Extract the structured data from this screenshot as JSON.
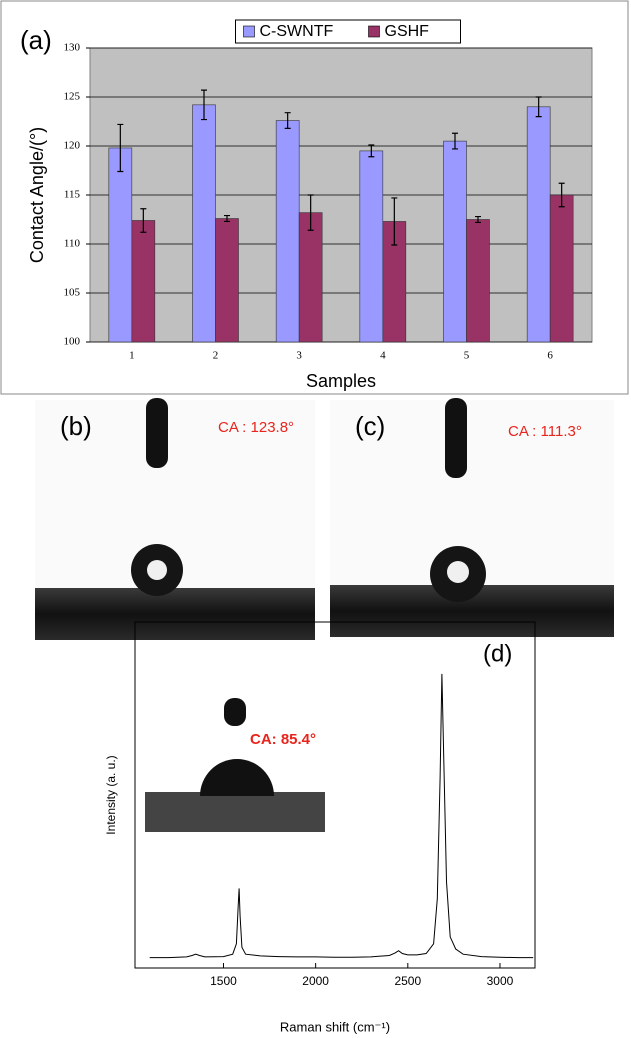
{
  "chart_data": [
    {
      "type": "bar",
      "label": "(a)",
      "categories": [
        "1",
        "2",
        "3",
        "4",
        "5",
        "6"
      ],
      "series": [
        {
          "name": "C-SWNTF",
          "color": "#9999ff",
          "values": [
            119.8,
            124.2,
            122.6,
            119.5,
            120.5,
            124.0
          ],
          "errors": [
            2.4,
            1.5,
            0.8,
            0.6,
            0.8,
            1.0
          ]
        },
        {
          "name": "GSHF",
          "color": "#993366",
          "values": [
            112.4,
            112.6,
            113.2,
            112.3,
            112.5,
            115.0
          ],
          "errors": [
            1.2,
            0.3,
            1.8,
            2.4,
            0.3,
            1.2
          ]
        }
      ],
      "xlabel": "Samples",
      "ylabel": "Contact Angle/(°)",
      "ylim": [
        100,
        130
      ],
      "yticks": [
        100,
        105,
        110,
        115,
        120,
        125,
        130
      ],
      "grid": true,
      "legend": "top"
    },
    {
      "type": "line",
      "label": "(d)",
      "x": [
        1100,
        1200,
        1300,
        1330,
        1350,
        1370,
        1400,
        1500,
        1550,
        1570,
        1580,
        1585,
        1590,
        1600,
        1620,
        1700,
        1800,
        1900,
        2000,
        2100,
        2200,
        2300,
        2400,
        2430,
        2450,
        2470,
        2500,
        2550,
        2600,
        2640,
        2660,
        2675,
        2685,
        2695,
        2710,
        2730,
        2760,
        2800,
        2900,
        3000,
        3100,
        3180
      ],
      "values": [
        3,
        3,
        3.2,
        3.6,
        4,
        3.6,
        3.2,
        3.3,
        4,
        7,
        18,
        23,
        15,
        6,
        4,
        3.5,
        3.3,
        3.2,
        3.2,
        3.1,
        3.1,
        3.2,
        3.6,
        4.3,
        5,
        4.2,
        3.8,
        3.8,
        4.2,
        7,
        20,
        55,
        85,
        60,
        25,
        9,
        5.5,
        4,
        3.3,
        3.1,
        3,
        3
      ],
      "color": "#000000",
      "xlabel": "Raman shift (cm⁻¹)",
      "ylabel": "Intensity (a. u.)",
      "xlim": [
        1020,
        3190
      ],
      "xticks": [
        1500,
        2000,
        2500,
        3000
      ],
      "ylim": [
        0,
        100
      ],
      "annotations": [
        "CA: 85.4°"
      ]
    }
  ],
  "photos": [
    {
      "label": "(b)",
      "annotation": "CA : 123.8°"
    },
    {
      "label": "(c)",
      "annotation": "CA : 111.3°"
    }
  ]
}
